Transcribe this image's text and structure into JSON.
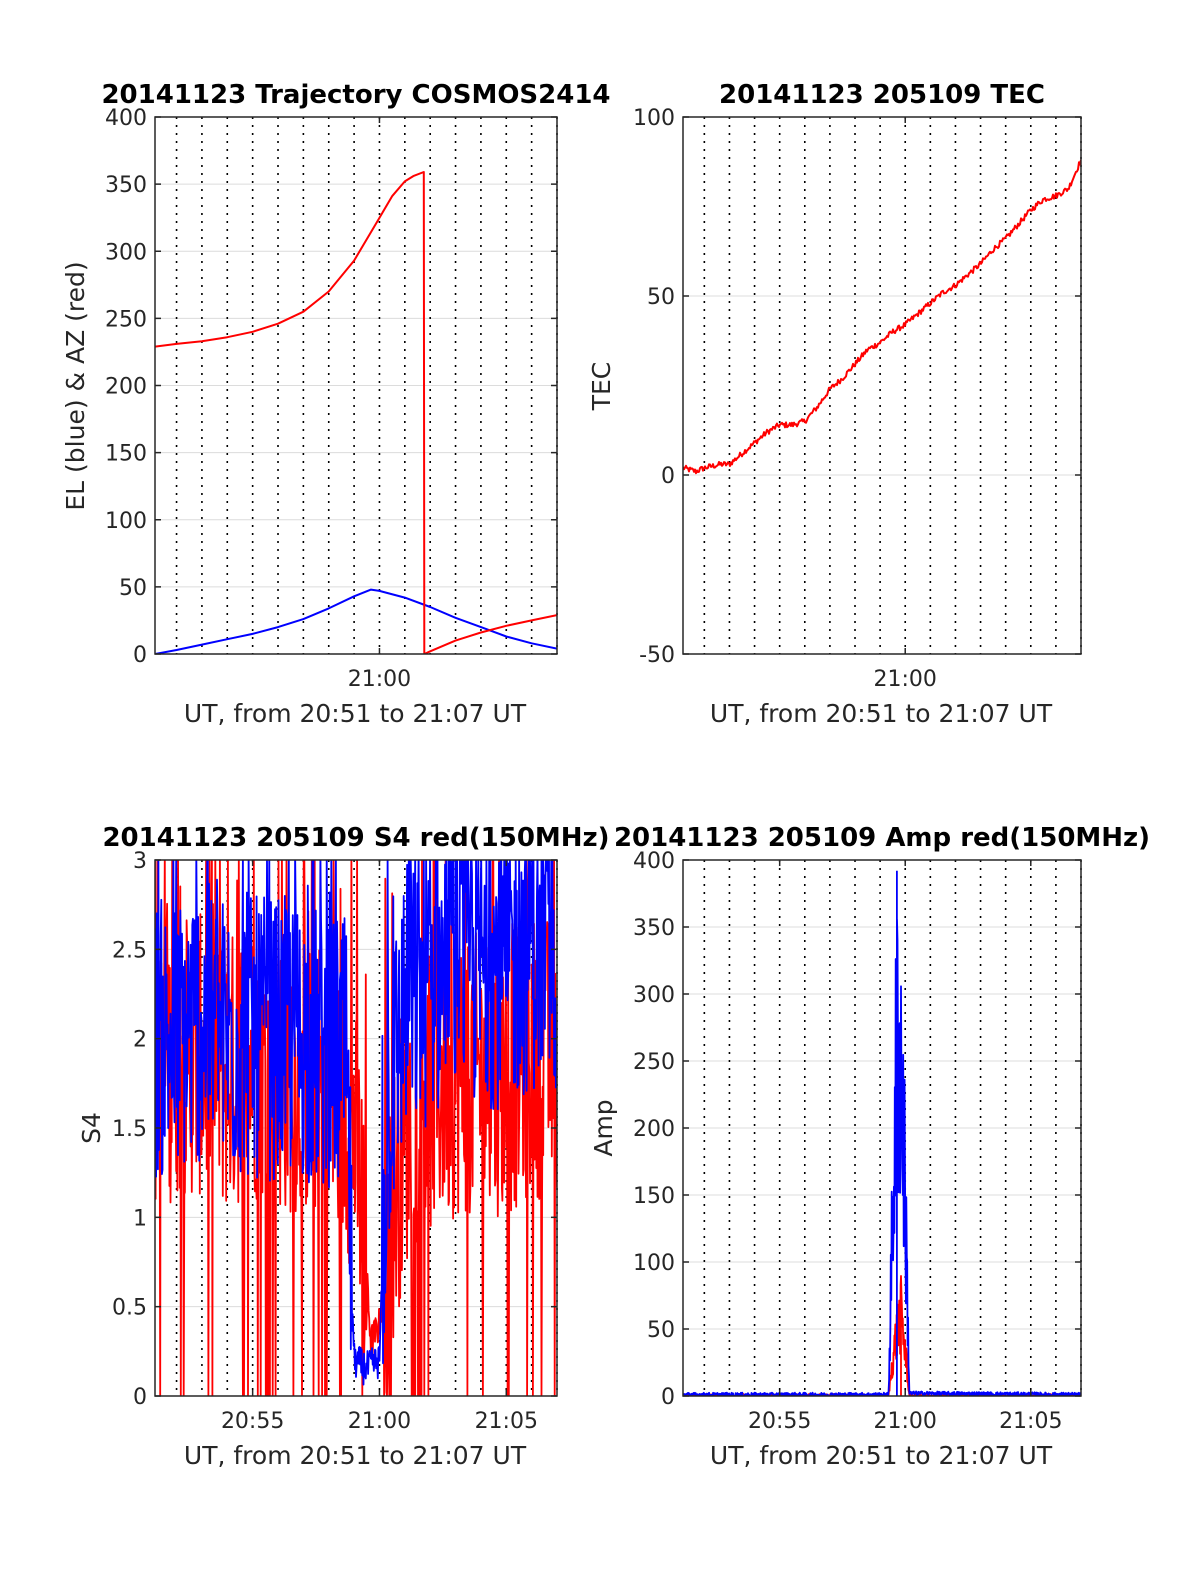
{
  "colors": {
    "blue": "#0000ff",
    "red": "#ff0000",
    "axis": "#262626",
    "grid": "#dcdcdc"
  },
  "chart_data": [
    {
      "id": "traj",
      "type": "line",
      "title": "20141123 Trajectory COSMOS2414",
      "xlabel": "UT, from 20:51 to 21:07 UT",
      "ylabel": "EL (blue) & AZ (red)",
      "xlim": [
        "20:51:09",
        "21:07:00"
      ],
      "ylim": [
        0,
        400
      ],
      "yticks": [
        0,
        50,
        100,
        150,
        200,
        250,
        300,
        350,
        400
      ],
      "xticks": [
        {
          "t": "21:00",
          "label": "21:00"
        }
      ],
      "grid": true,
      "series": [
        {
          "color": "blue",
          "x": [
            "20:51:09",
            "20:52:00",
            "20:53:00",
            "20:54:00",
            "20:55:00",
            "20:56:00",
            "20:57:00",
            "20:58:00",
            "20:59:00",
            "20:59:40",
            "21:00:00",
            "21:01:00",
            "21:02:00",
            "21:03:00",
            "21:04:00",
            "21:05:00",
            "21:06:00",
            "21:07:00"
          ],
          "y": [
            0,
            3,
            7,
            11,
            15,
            20,
            26,
            34,
            43,
            48,
            47,
            42,
            35,
            27,
            20,
            13,
            8,
            4
          ]
        },
        {
          "color": "red",
          "x": [
            "20:51:09",
            "20:52:00",
            "20:53:00",
            "20:54:00",
            "20:55:00",
            "20:56:00",
            "20:57:00",
            "20:58:00",
            "20:59:00",
            "21:00:00",
            "21:00:30",
            "21:01:00",
            "21:01:20",
            "21:01:45",
            "21:01:46",
            "21:02:00",
            "21:03:00",
            "21:04:00",
            "21:05:00",
            "21:06:00",
            "21:07:00"
          ],
          "y": [
            229,
            231,
            233,
            236,
            240,
            246,
            255,
            270,
            293,
            325,
            341,
            352,
            356,
            359,
            0,
            2,
            10,
            16,
            21,
            25,
            29
          ]
        }
      ]
    },
    {
      "id": "tec",
      "type": "line",
      "title": "20141123 205109 TEC",
      "xlabel": "UT, from 20:51 to 21:07 UT",
      "ylabel": "TEC",
      "xlim": [
        "20:51:09",
        "21:07:00"
      ],
      "ylim": [
        -50,
        100
      ],
      "yticks": [
        -50,
        0,
        50,
        100
      ],
      "xticks": [
        {
          "t": "21:00",
          "label": "21:00"
        }
      ],
      "grid": true,
      "series": [
        {
          "color": "red",
          "noise": 0.8,
          "x": [
            "20:51:09",
            "20:51:40",
            "20:52:00",
            "20:52:40",
            "20:53:00",
            "20:53:30",
            "20:54:00",
            "20:54:30",
            "20:55:00",
            "20:55:30",
            "20:56:00",
            "20:56:30",
            "20:57:00",
            "20:57:30",
            "20:58:00",
            "20:58:30",
            "20:59:00",
            "20:59:30",
            "21:00:00",
            "21:00:30",
            "21:01:00",
            "21:01:30",
            "21:02:00",
            "21:02:30",
            "21:03:00",
            "21:03:30",
            "21:04:00",
            "21:04:30",
            "21:05:00",
            "21:05:30",
            "21:06:00",
            "21:06:30",
            "21:07:00"
          ],
          "y": [
            2,
            1,
            2,
            3,
            3,
            6,
            9,
            12,
            14,
            14,
            15,
            19,
            24,
            27,
            31,
            35,
            37,
            40,
            42,
            45,
            48,
            51,
            53,
            56,
            59,
            63,
            66,
            70,
            74,
            77,
            78,
            80,
            88
          ]
        }
      ]
    },
    {
      "id": "s4",
      "type": "line",
      "title": "20141123 205109 S4 red(150MHz)",
      "xlabel": "UT, from 20:51 to 21:07 UT",
      "ylabel": "S4",
      "xlim": [
        "20:51:09",
        "21:07:00"
      ],
      "ylim": [
        0,
        3
      ],
      "yticks": [
        0,
        0.5,
        1,
        1.5,
        2,
        2.5,
        3
      ],
      "xticks": [
        {
          "t": "20:55",
          "label": "20:55"
        },
        {
          "t": "21:00",
          "label": "21:00"
        },
        {
          "t": "21:05",
          "label": "21:05"
        }
      ],
      "grid": true,
      "series": [
        {
          "color": "red",
          "style": "noisy",
          "x": [
            "20:51:09",
            "20:52:00",
            "20:53:00",
            "20:54:00",
            "20:55:00",
            "20:56:00",
            "20:57:00",
            "20:58:00",
            "20:59:00",
            "20:59:20",
            "20:59:40",
            "21:00:00",
            "21:00:20",
            "21:00:40",
            "21:01:00",
            "21:02:00",
            "21:03:00",
            "21:04:00",
            "21:05:00",
            "21:06:00",
            "21:07:00"
          ],
          "y": [
            1.8,
            1.9,
            1.9,
            1.8,
            1.9,
            1.8,
            1.8,
            1.7,
            1.5,
            1.0,
            0.3,
            0.4,
            0.8,
            1.2,
            1.5,
            1.7,
            1.8,
            1.8,
            1.8,
            1.9,
            1.9
          ]
        },
        {
          "color": "blue",
          "style": "noisy",
          "x": [
            "20:51:09",
            "20:52:00",
            "20:53:00",
            "20:54:00",
            "20:55:00",
            "20:56:00",
            "20:57:00",
            "20:58:00",
            "20:58:40",
            "20:59:00",
            "20:59:30",
            "21:00:00",
            "21:00:20",
            "21:01:00",
            "21:02:00",
            "21:03:00",
            "21:04:00",
            "21:05:00",
            "21:06:00",
            "21:07:00"
          ],
          "y": [
            2.0,
            2.0,
            2.1,
            2.0,
            2.0,
            2.0,
            2.0,
            1.9,
            1.9,
            0.2,
            0.15,
            0.2,
            1.6,
            2.2,
            2.3,
            2.4,
            2.4,
            2.4,
            2.5,
            2.5
          ]
        }
      ]
    },
    {
      "id": "amp",
      "type": "line",
      "title": "20141123 205109 Amp red(150MHz)",
      "xlabel": "UT, from 20:51 to 21:07 UT",
      "ylabel": "Amp",
      "xlim": [
        "20:51:09",
        "21:07:00"
      ],
      "ylim": [
        0,
        400
      ],
      "yticks": [
        0,
        50,
        100,
        150,
        200,
        250,
        300,
        350,
        400
      ],
      "xticks": [
        {
          "t": "20:55",
          "label": "20:55"
        },
        {
          "t": "21:00",
          "label": "21:00"
        },
        {
          "t": "21:05",
          "label": "21:05"
        }
      ],
      "grid": true,
      "series": [
        {
          "color": "red",
          "style": "spike",
          "x": [
            "20:51:09",
            "20:59:20",
            "20:59:30",
            "20:59:40",
            "20:59:50",
            "21:00:00",
            "21:00:10",
            "21:07:00"
          ],
          "y": [
            0,
            0,
            40,
            70,
            90,
            50,
            0,
            0
          ]
        },
        {
          "color": "blue",
          "style": "spike",
          "x": [
            "20:51:09",
            "20:59:20",
            "20:59:30",
            "20:59:40",
            "20:59:50",
            "21:00:00",
            "21:00:10",
            "21:07:00"
          ],
          "y": [
            1,
            1,
            200,
            392,
            360,
            220,
            2,
            1
          ]
        }
      ]
    }
  ]
}
